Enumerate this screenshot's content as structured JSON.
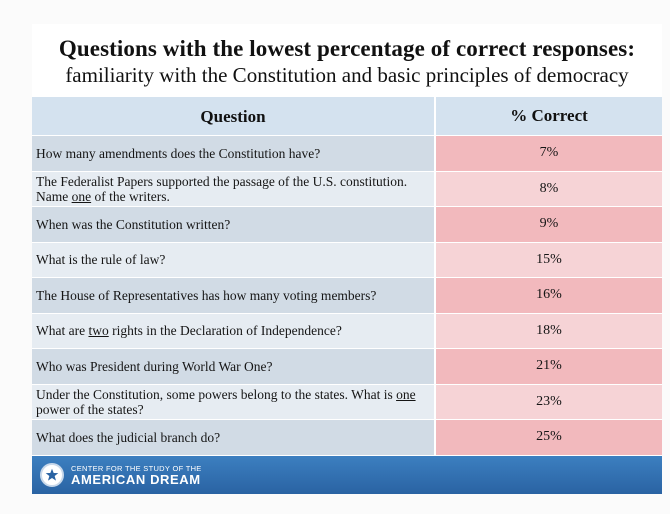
{
  "title": {
    "line1": "Questions with the lowest percentage of correct responses:",
    "line2": "familiarity with the Constitution and basic principles of democracy"
  },
  "table": {
    "headers": {
      "question": "Question",
      "percent": "% Correct"
    },
    "rows": [
      {
        "question": "How many amendments does the Constitution have?",
        "percent": "7%"
      },
      {
        "question_parts": [
          "The Federalist Papers supported the passage of the U.S. constitution.  Name ",
          "one",
          " of the writers."
        ],
        "percent": "8%"
      },
      {
        "question": "When was the Constitution written?",
        "percent": "9%"
      },
      {
        "question": "What is the rule of law?",
        "percent": "15%"
      },
      {
        "question": "The House of Representatives has how many voting members?",
        "percent": "16%"
      },
      {
        "question_parts": [
          "What are ",
          "two",
          " rights in the Declaration of Independence?"
        ],
        "percent": "18%"
      },
      {
        "question": "Who was President during World War One?",
        "percent": "21%"
      },
      {
        "question_parts": [
          "Under the Constitution, some powers belong to the states.  What is ",
          "one",
          " power of the states?"
        ],
        "percent": "23%"
      },
      {
        "question": "What does the judicial branch do?",
        "percent": "25%"
      }
    ]
  },
  "footer": {
    "line1": "CENTER FOR THE STUDY OF THE",
    "line2": "AMERICAN DREAM",
    "logo_icon": "star-seal-icon"
  },
  "colors": {
    "header_bg": "#d4e2ef",
    "percent_dark": "#f2b9bd",
    "percent_light": "#f6d3d6",
    "footer_blue": "#2a63a3"
  }
}
